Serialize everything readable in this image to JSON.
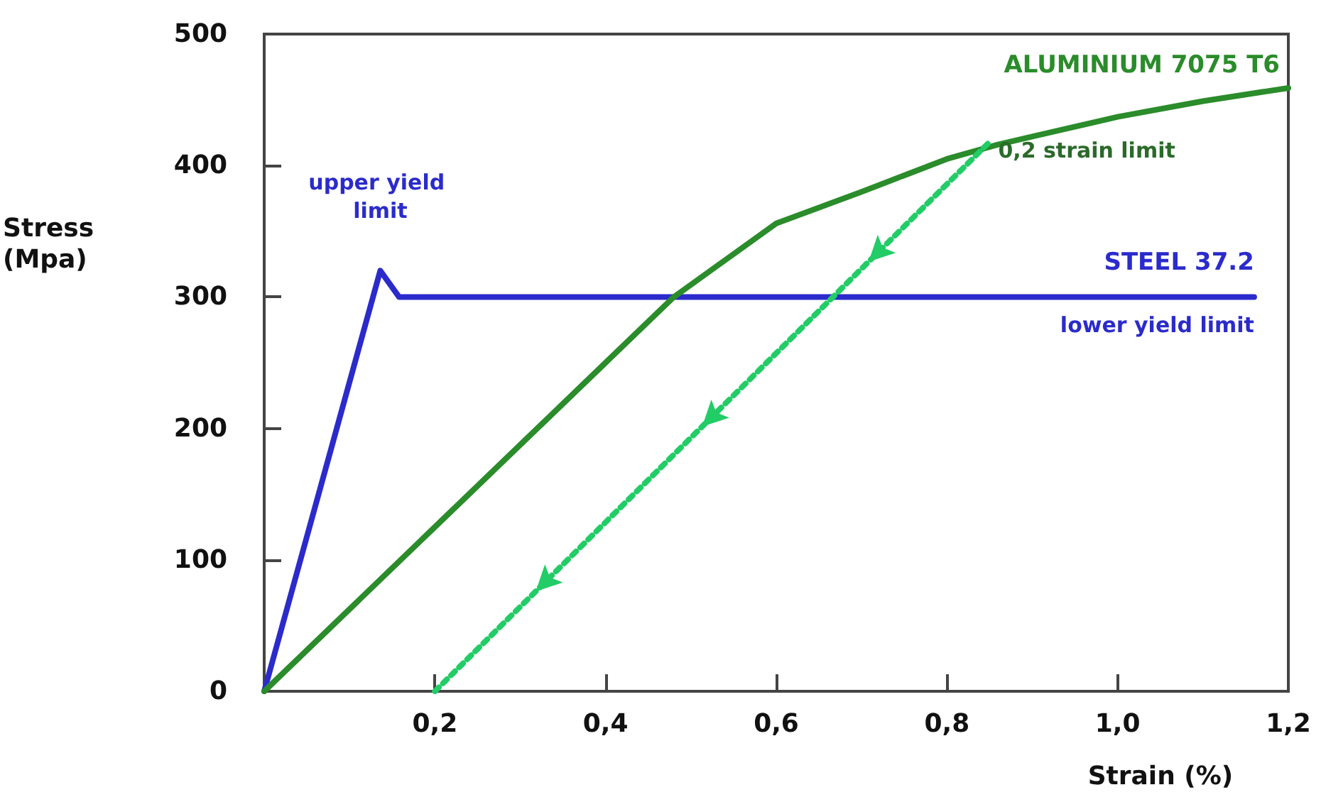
{
  "chart_data": {
    "type": "line",
    "xlabel": "Strain (%)",
    "ylabel": "Stress (Mpa)",
    "xlim": [
      0,
      1.2
    ],
    "ylim": [
      0,
      500
    ],
    "xticks": [
      {
        "value": 0,
        "label": null
      },
      {
        "value": 0.2,
        "label": "0,2"
      },
      {
        "value": 0.4,
        "label": "0,4"
      },
      {
        "value": 0.6,
        "label": "0,6"
      },
      {
        "value": 0.8,
        "label": "0,8"
      },
      {
        "value": 1.0,
        "label": "1,0"
      },
      {
        "value": 1.2,
        "label": "1,2"
      }
    ],
    "yticks": [
      0,
      100,
      200,
      300,
      400,
      500
    ],
    "grid": false,
    "legend": false,
    "marker": "none",
    "series": [
      {
        "name": "STEEL 37.2",
        "color": "#2b2bcc",
        "x": [
          0,
          0.136,
          0.158,
          1.16
        ],
        "values": [
          0,
          320,
          300,
          300
        ],
        "line_style": "solid"
      },
      {
        "name": "ALUMINIUM 7075 T6",
        "color": "#2a8c2a",
        "x": [
          0,
          0.2,
          0.4,
          0.48,
          0.6,
          0.7,
          0.8,
          0.86,
          0.9,
          1.0,
          1.1,
          1.2
        ],
        "values": [
          0,
          125,
          250,
          300,
          356,
          380,
          405,
          416,
          422,
          437,
          449,
          459
        ],
        "line_style": "solid"
      },
      {
        "color": "#22cc66",
        "x": [
          0.2,
          0.85
        ],
        "values": [
          0,
          418
        ],
        "line_style": "dotted"
      }
    ],
    "annotations": [
      {
        "text": "upper yield limit",
        "x": 0.136,
        "y": 320
      },
      {
        "text": "lower yield limit",
        "x": 1.16,
        "y": 300
      },
      {
        "text": "0,2 strain limit",
        "x": 0.85,
        "y": 418
      }
    ]
  }
}
